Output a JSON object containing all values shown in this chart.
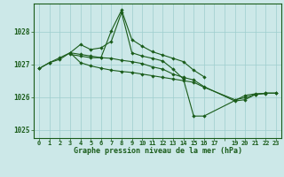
{
  "background_color": "#cce8e8",
  "grid_color": "#9ecece",
  "line_color": "#1a5c1a",
  "title": "Graphe pression niveau de la mer (hPa)",
  "xlim": [
    -0.5,
    23.5
  ],
  "ylim": [
    1024.75,
    1028.85
  ],
  "yticks": [
    1025,
    1026,
    1027,
    1028
  ],
  "xtick_labels": [
    "0",
    "1",
    "2",
    "3",
    "4",
    "5",
    "6",
    "7",
    "8",
    "9",
    "10",
    "11",
    "12",
    "13",
    "14",
    "15",
    "16",
    "17",
    "",
    "19",
    "20",
    "21",
    "22",
    "23"
  ],
  "series": [
    [
      0,
      1026.87
    ],
    [
      1,
      1027.05
    ],
    [
      2,
      1027.15
    ],
    [
      3,
      1027.35
    ],
    [
      4,
      1027.6
    ],
    [
      5,
      1027.45
    ],
    [
      6,
      1027.5
    ],
    [
      7,
      1027.7
    ],
    [
      8,
      1028.58
    ],
    [
      9,
      1027.35
    ],
    [
      10,
      1027.25
    ],
    [
      11,
      1027.18
    ],
    [
      12,
      1027.1
    ],
    [
      13,
      1026.85
    ],
    [
      14,
      1026.55
    ],
    [
      15,
      1025.42
    ],
    [
      16,
      1025.42
    ],
    [
      20,
      1026.05
    ],
    [
      21,
      1026.1
    ],
    [
      22,
      1026.1
    ]
  ],
  "series2": [
    [
      3,
      1027.3
    ],
    [
      4,
      1027.25
    ],
    [
      5,
      1027.2
    ],
    [
      6,
      1027.2
    ],
    [
      7,
      1028.02
    ],
    [
      8,
      1028.65
    ],
    [
      9,
      1027.75
    ],
    [
      10,
      1027.55
    ],
    [
      11,
      1027.38
    ],
    [
      12,
      1027.28
    ],
    [
      13,
      1027.18
    ],
    [
      14,
      1027.08
    ],
    [
      15,
      1026.82
    ],
    [
      16,
      1026.62
    ]
  ],
  "series3": [
    [
      0,
      1026.87
    ],
    [
      1,
      1027.05
    ],
    [
      2,
      1027.2
    ],
    [
      3,
      1027.35
    ],
    [
      4,
      1027.05
    ],
    [
      5,
      1026.95
    ],
    [
      6,
      1026.88
    ],
    [
      7,
      1026.82
    ],
    [
      8,
      1026.78
    ],
    [
      9,
      1026.75
    ],
    [
      10,
      1026.7
    ],
    [
      11,
      1026.65
    ],
    [
      12,
      1026.6
    ],
    [
      13,
      1026.55
    ],
    [
      14,
      1026.5
    ],
    [
      15,
      1026.45
    ],
    [
      16,
      1026.3
    ],
    [
      19,
      1025.92
    ],
    [
      20,
      1025.98
    ],
    [
      21,
      1026.08
    ],
    [
      22,
      1026.12
    ],
    [
      23,
      1026.12
    ]
  ],
  "series4": [
    [
      3,
      1027.35
    ],
    [
      4,
      1027.3
    ],
    [
      5,
      1027.25
    ],
    [
      6,
      1027.2
    ],
    [
      7,
      1027.18
    ],
    [
      8,
      1027.12
    ],
    [
      9,
      1027.08
    ],
    [
      10,
      1027.02
    ],
    [
      11,
      1026.92
    ],
    [
      12,
      1026.85
    ],
    [
      13,
      1026.7
    ],
    [
      14,
      1026.6
    ],
    [
      15,
      1026.52
    ],
    [
      16,
      1026.32
    ],
    [
      19,
      1025.88
    ],
    [
      20,
      1025.92
    ],
    [
      21,
      1026.08
    ],
    [
      22,
      1026.12
    ],
    [
      23,
      1026.12
    ]
  ]
}
